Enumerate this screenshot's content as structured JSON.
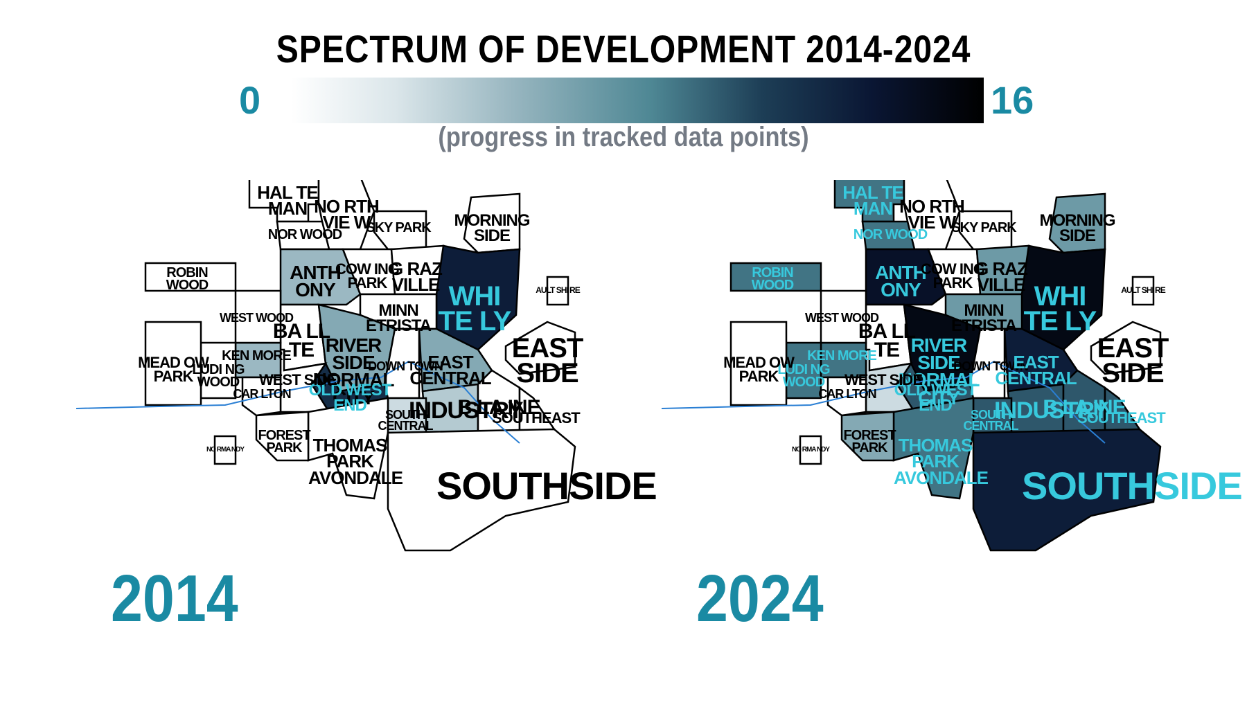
{
  "header": {
    "title": "SPECTRUM OF DEVELOPMENT 2014-2024",
    "scale_min": "0",
    "scale_max": "16",
    "subtitle": "(progress in tracked data points)"
  },
  "colors": {
    "accent": "#1a8aa3",
    "scale_low": "#ffffff",
    "scale_high": "#000000",
    "river": "#2a7fd4",
    "highlight_text": "#37c9dd"
  },
  "scale": {
    "min": 0,
    "max": 16
  },
  "maps": {
    "m2014": {
      "year": "2014",
      "neighborhoods": [
        {
          "name": "HALTEMAN",
          "text": "HAL TE MAN",
          "level": 0
        },
        {
          "name": "NORTHVIEW",
          "text": "NO RTH VIE W",
          "level": 0
        },
        {
          "name": "NORWOOD",
          "text": "NOR WOOD",
          "level": 0
        },
        {
          "name": "SKYPARK",
          "text": "SKY PARK",
          "level": 0
        },
        {
          "name": "MORNINGSIDE",
          "text": "MORNING SIDE",
          "level": 0
        },
        {
          "name": "ANTHONY",
          "text": "ANTH ONY",
          "level": 5
        },
        {
          "name": "COWING PARK",
          "text": "COW ING PARK",
          "level": 0
        },
        {
          "name": "GRAZVILLE",
          "text": "G RAZ VILLE",
          "level": 0
        },
        {
          "name": "WHITELY",
          "text": "WHI TE LY",
          "level": 13
        },
        {
          "name": "ROBINWOOD",
          "text": "ROBIN WOOD",
          "level": 0
        },
        {
          "name": "BALL TE",
          "text": "BA LL TE",
          "level": 0
        },
        {
          "name": "MINNETRISTA",
          "text": "MINN ETRISTA",
          "level": 0
        },
        {
          "name": "RIVERSIDE NORMAL CITY",
          "text": "RIVER SIDE NORMAL CITY",
          "level": 6
        },
        {
          "name": "OLD WEST END",
          "text": "OLD WEST END",
          "level": 12
        },
        {
          "name": "DOWNTOWN",
          "text": "DOWN TOWN",
          "level": 0
        },
        {
          "name": "EAST CENTRAL",
          "text": "EAST CENTRAL",
          "level": 6
        },
        {
          "name": "WEST SIDE",
          "text": "WEST SIDE",
          "level": 0
        },
        {
          "name": "EAST SIDE",
          "text": "EAST SIDE",
          "level": 0
        },
        {
          "name": "INDUSTRY",
          "text": "INDUSTRY",
          "level": 4
        },
        {
          "name": "BLAINE",
          "text": "B LA INE",
          "level": 0
        },
        {
          "name": "SOUTHEAST",
          "text": "SOUTHEAST",
          "level": 0
        },
        {
          "name": "SOUTH CENTRAL",
          "text": "SOUTH CENTRAL",
          "level": 3
        },
        {
          "name": "THOMAS PARK AVONDALE",
          "text": "THOMAS PARK AVONDALE",
          "level": 0
        },
        {
          "name": "FOREST PARK",
          "text": "FOREST PARK",
          "level": 0
        },
        {
          "name": "SOUTHSIDE",
          "text": "SOUTHSIDE",
          "level": 0
        },
        {
          "name": "KENMORE",
          "text": "KEN MORE",
          "level": 5
        },
        {
          "name": "WESTWOOD",
          "text": "WEST WOOD",
          "level": 0
        },
        {
          "name": "CARLTON",
          "text": "CAR LTON",
          "level": 0
        },
        {
          "name": "LUDIN WOOD",
          "text": "LUDI NG WOOD",
          "level": 0
        },
        {
          "name": "MEADOW PARK",
          "text": "MEAD OW PARK",
          "level": 0
        },
        {
          "name": "NORMANDY",
          "text": "NO RMA NDY",
          "level": 0
        },
        {
          "name": "AULTSHIRE",
          "text": "AULT SHI RE",
          "level": 0
        }
      ]
    },
    "m2024": {
      "year": "2024",
      "neighborhoods": [
        {
          "name": "HALTEMAN",
          "text": "HAL TE MAN",
          "level": 9
        },
        {
          "name": "NORTHVIEW",
          "text": "NO RTH VIE W",
          "level": 0
        },
        {
          "name": "NORWOOD",
          "text": "NOR WOOD",
          "level": 9
        },
        {
          "name": "SKYPARK",
          "text": "SKY PARK",
          "level": 0
        },
        {
          "name": "MORNINGSIDE",
          "text": "MORNING SIDE",
          "level": 7
        },
        {
          "name": "ANTHONY",
          "text": "ANTH ONY",
          "level": 14
        },
        {
          "name": "COWING PARK",
          "text": "COW ING PARK",
          "level": 0
        },
        {
          "name": "GRAZVILLE",
          "text": "G RAZ VILLE",
          "level": 7
        },
        {
          "name": "WHITELY",
          "text": "WHI TE LY",
          "level": 15
        },
        {
          "name": "ROBINWOOD",
          "text": "ROBIN WOOD",
          "level": 9
        },
        {
          "name": "BALL TE",
          "text": "BA LL TE",
          "level": 0
        },
        {
          "name": "MINNETRISTA",
          "text": "MINN ETRISTA",
          "level": 7
        },
        {
          "name": "RIVERSIDE NORMAL CITY",
          "text": "RIVER SIDE NORMAL CITY",
          "level": 15
        },
        {
          "name": "OLD WEST END",
          "text": "OLD WEST END",
          "level": 10
        },
        {
          "name": "DOWNTOWN",
          "text": "DOWN TOWN",
          "level": 0
        },
        {
          "name": "EAST CENTRAL",
          "text": "EAST CENTRAL",
          "level": 13
        },
        {
          "name": "WEST SIDE",
          "text": "WEST SIDE",
          "level": 3
        },
        {
          "name": "EAST SIDE",
          "text": "EAST SIDE",
          "level": 0
        },
        {
          "name": "INDUSTRY",
          "text": "INDUSTRY",
          "level": 10
        },
        {
          "name": "BLAINE",
          "text": "B LA INE",
          "level": 10
        },
        {
          "name": "SOUTHEAST",
          "text": "SOUTHEAST",
          "level": 10
        },
        {
          "name": "SOUTH CENTRAL",
          "text": "SOUTH CENTRAL",
          "level": 10
        },
        {
          "name": "THOMAS PARK AVONDALE",
          "text": "THOMAS PARK AVONDALE",
          "level": 9
        },
        {
          "name": "FOREST PARK",
          "text": "FOREST PARK",
          "level": 6
        },
        {
          "name": "SOUTHSIDE",
          "text": "SOUTHSIDE",
          "level": 13
        },
        {
          "name": "KENMORE",
          "text": "KEN MORE",
          "level": 9
        },
        {
          "name": "WESTWOOD",
          "text": "WEST WOOD",
          "level": 0
        },
        {
          "name": "CARLTON",
          "text": "CAR LTON",
          "level": 0
        },
        {
          "name": "LUDIN WOOD",
          "text": "LUDI NG WOOD",
          "level": 9
        },
        {
          "name": "MEADOW PARK",
          "text": "MEAD OW PARK",
          "level": 0
        },
        {
          "name": "NORMANDY",
          "text": "NO RMA NDY",
          "level": 0
        },
        {
          "name": "AULTSHIRE",
          "text": "AULT SHI RE",
          "level": 0
        }
      ]
    }
  }
}
